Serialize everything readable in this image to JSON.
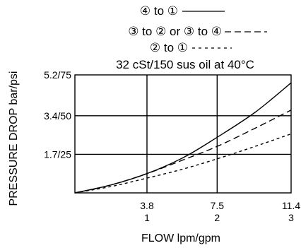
{
  "chart_data": {
    "type": "line",
    "legend_placement": "top",
    "legend": [
      {
        "label": "④ to ①",
        "style": "solid"
      },
      {
        "label": "③ to ② or ③ to ④",
        "style": "long-dash"
      },
      {
        "label": "② to ①",
        "style": "short-dash"
      }
    ],
    "note": "32 cSt/150 sus oil at 40°C",
    "ylabel": "PRESSURE DROP bar/psi",
    "xlabel": "FLOW lpm/gpm",
    "x_ticks": [
      {
        "value": 3.8,
        "lpm": "3.8",
        "gpm": "1"
      },
      {
        "value": 7.5,
        "lpm": "7.5",
        "gpm": "2"
      },
      {
        "value": 11.4,
        "lpm": "11.4",
        "gpm": "3"
      }
    ],
    "y_ticks": [
      {
        "value": 1.7,
        "label": "1.7/25"
      },
      {
        "value": 3.4,
        "label": "3.4/50"
      },
      {
        "value": 5.2,
        "label": "5.2/75"
      }
    ],
    "xlim": [
      0,
      11.4
    ],
    "ylim": [
      0,
      5.2
    ],
    "grid": true,
    "series": [
      {
        "name": "④ to ①",
        "style": "solid",
        "x": [
          0,
          1.9,
          3.8,
          5.7,
          7.5,
          9.5,
          11.4
        ],
        "y": [
          0,
          0.35,
          0.85,
          1.55,
          2.45,
          3.55,
          4.85
        ]
      },
      {
        "name": "③ to ② or ③ to ④",
        "style": "long-dash",
        "x": [
          0,
          1.9,
          3.8,
          5.7,
          7.5,
          9.5,
          11.4
        ],
        "y": [
          0,
          0.35,
          0.85,
          1.45,
          2.05,
          2.85,
          3.65
        ]
      },
      {
        "name": "② to ①",
        "style": "short-dash",
        "x": [
          0,
          1.9,
          3.8,
          5.7,
          7.5,
          9.5,
          11.4
        ],
        "y": [
          0,
          0.28,
          0.65,
          1.05,
          1.5,
          2.05,
          2.6
        ]
      }
    ]
  }
}
